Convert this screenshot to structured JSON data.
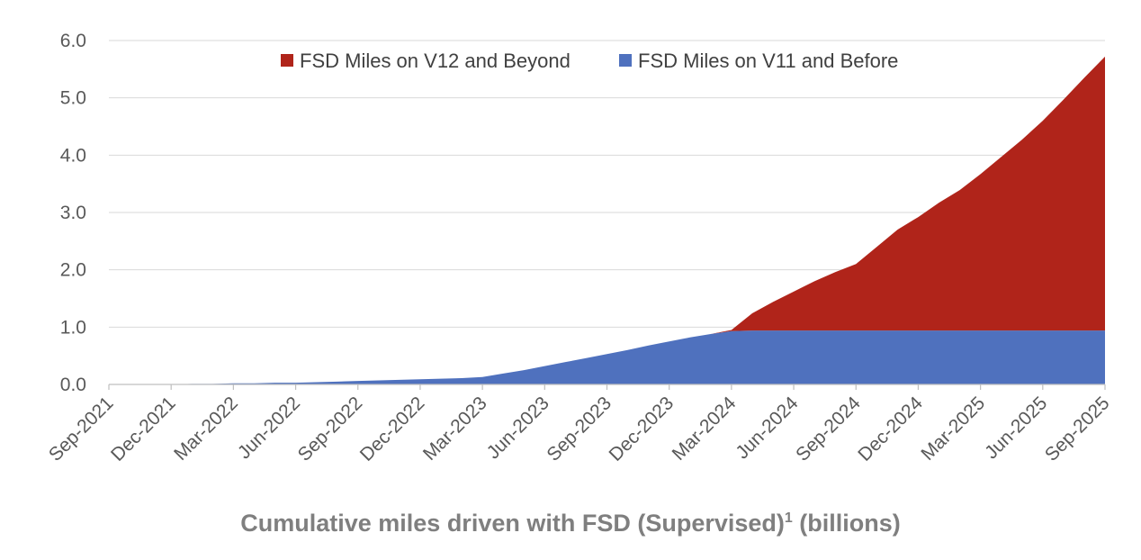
{
  "chart_data": {
    "type": "area",
    "stacked": true,
    "title": "",
    "caption": {
      "main": "Cumulative miles driven with FSD (Supervised)",
      "superscript": "1",
      "suffix": " (billions)"
    },
    "xlabel": "",
    "ylabel": "",
    "ylim": [
      0,
      6
    ],
    "y_ticks": [
      "0.0",
      "1.0",
      "2.0",
      "3.0",
      "4.0",
      "5.0",
      "6.0"
    ],
    "x_tick_labels": [
      "Sep-2021",
      "Dec-2021",
      "Mar-2022",
      "Jun-2022",
      "Sep-2022",
      "Dec-2022",
      "Mar-2023",
      "Jun-2023",
      "Sep-2023",
      "Dec-2023",
      "Mar-2024",
      "Jun-2024",
      "Sep-2024",
      "Dec-2024",
      "Mar-2025",
      "Jun-2025",
      "Sep-2025"
    ],
    "grid": "horizontal",
    "legend_position": "top",
    "x": [
      "Sep-2021",
      "Oct-2021",
      "Nov-2021",
      "Dec-2021",
      "Jan-2022",
      "Feb-2022",
      "Mar-2022",
      "Apr-2022",
      "May-2022",
      "Jun-2022",
      "Jul-2022",
      "Aug-2022",
      "Sep-2022",
      "Oct-2022",
      "Nov-2022",
      "Dec-2022",
      "Jan-2023",
      "Feb-2023",
      "Mar-2023",
      "Apr-2023",
      "May-2023",
      "Jun-2023",
      "Jul-2023",
      "Aug-2023",
      "Sep-2023",
      "Oct-2023",
      "Nov-2023",
      "Dec-2023",
      "Jan-2024",
      "Feb-2024",
      "Mar-2024",
      "Apr-2024",
      "May-2024",
      "Jun-2024",
      "Jul-2024",
      "Aug-2024",
      "Sep-2024",
      "Oct-2024",
      "Nov-2024",
      "Dec-2024",
      "Jan-2025",
      "Feb-2025",
      "Mar-2025",
      "Apr-2025",
      "May-2025",
      "Jun-2025",
      "Jul-2025",
      "Aug-2025",
      "Sep-2025"
    ],
    "series": [
      {
        "name": "FSD Miles on V11 and Before",
        "color": "#4f71be",
        "values": [
          0.0,
          0.0,
          0.0,
          0.0,
          0.01,
          0.01,
          0.02,
          0.02,
          0.03,
          0.03,
          0.04,
          0.05,
          0.06,
          0.07,
          0.08,
          0.09,
          0.1,
          0.11,
          0.13,
          0.19,
          0.25,
          0.32,
          0.39,
          0.46,
          0.53,
          0.6,
          0.68,
          0.75,
          0.82,
          0.88,
          0.93,
          0.94,
          0.94,
          0.94,
          0.94,
          0.94,
          0.94,
          0.94,
          0.94,
          0.94,
          0.94,
          0.94,
          0.94,
          0.94,
          0.94,
          0.94,
          0.94,
          0.94,
          0.94
        ]
      },
      {
        "name": "FSD Miles on V12 and Beyond",
        "color": "#b0241a",
        "values": [
          0,
          0,
          0,
          0,
          0,
          0,
          0,
          0,
          0,
          0,
          0,
          0,
          0,
          0,
          0,
          0,
          0,
          0,
          0,
          0,
          0,
          0,
          0,
          0,
          0,
          0,
          0,
          0,
          0,
          0,
          0.02,
          0.3,
          0.5,
          0.68,
          0.86,
          1.02,
          1.16,
          1.46,
          1.76,
          1.98,
          2.23,
          2.45,
          2.73,
          3.03,
          3.33,
          3.66,
          4.03,
          4.41,
          4.78
        ]
      }
    ]
  }
}
